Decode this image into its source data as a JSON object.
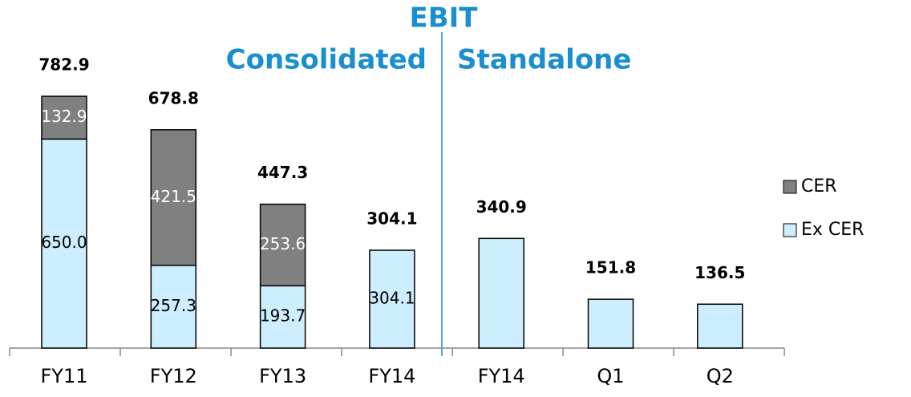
{
  "chart_data": {
    "type": "bar",
    "stacked": true,
    "title": "EBIT",
    "group_labels": [
      "Consolidated",
      "Standalone"
    ],
    "categories": [
      "FY11",
      "FY12",
      "FY13",
      "FY14",
      "FY14",
      "Q1",
      "Q2"
    ],
    "series": [
      {
        "name": "Ex CER",
        "color": "#cdeefe",
        "values": [
          650.0,
          257.3,
          193.7,
          304.1,
          340.9,
          151.8,
          136.5
        ],
        "value_labels": [
          "650.0",
          "257.3",
          "193.7",
          "304.1",
          null,
          null,
          null
        ]
      },
      {
        "name": "CER",
        "color": "#808080",
        "values": [
          132.9,
          421.5,
          253.6,
          null,
          null,
          null,
          null
        ],
        "value_labels": [
          "132.9",
          "421.5",
          "253.6",
          null,
          null,
          null,
          null
        ]
      }
    ],
    "totals": [
      782.9,
      678.8,
      447.3,
      304.1,
      340.9,
      151.8,
      136.5
    ]
  }
}
